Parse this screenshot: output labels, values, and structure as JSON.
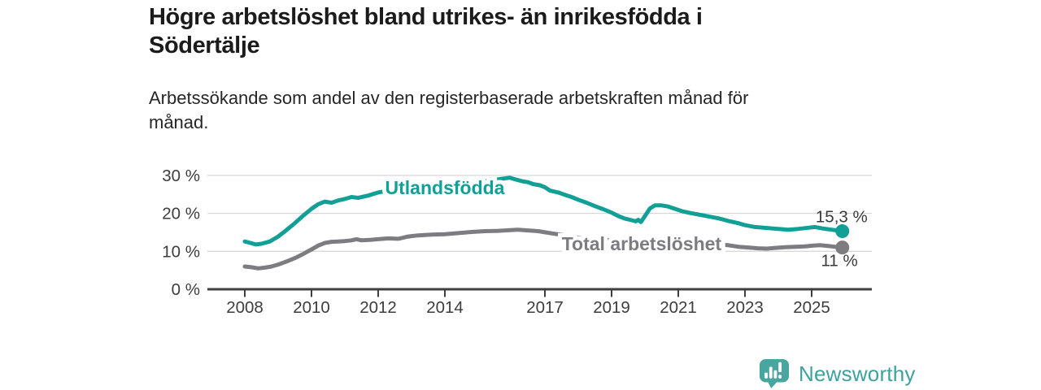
{
  "header": {
    "title": "Högre arbetslöshet bland utrikes- än inrikesfödda i Södertälje",
    "subtitle": "Arbetssökande som andel av den registerbaserade arbetskraften månad för månad."
  },
  "footer": {
    "brand": "Newsworthy",
    "brand_color": "#3FA19B",
    "logo_icon": "bar-chart-speech-bubble-icon"
  },
  "chart_data": {
    "type": "line",
    "unit": "%",
    "grid": "horizontal",
    "legend_position": "inline-labels",
    "ylim": [
      0,
      32
    ],
    "xlim": [
      2006.9,
      2026.8
    ],
    "y_ticks": {
      "values": [
        0,
        10,
        20,
        30
      ],
      "labels": [
        "0 %",
        "10 %",
        "20 %",
        "30 %"
      ]
    },
    "x_ticks": {
      "values": [
        2008,
        2010,
        2012,
        2014,
        2017,
        2019,
        2021,
        2023,
        2025
      ],
      "labels": [
        "2008",
        "2010",
        "2012",
        "2014",
        "2017",
        "2019",
        "2021",
        "2023",
        "2025"
      ]
    },
    "colors": {
      "grid": "#D9D9D9",
      "axis": "#404040",
      "tick_text": "#3D3D3D"
    },
    "series": [
      {
        "name": "Utlandsfödda",
        "color": "#12A096",
        "end_label": "15,3 %",
        "end_value": 15.3,
        "end_label_side": "above",
        "label_anchor": {
          "x": 2014.0,
          "y": 26.8
        },
        "points": [
          [
            2008,
            12.6
          ],
          [
            2008.17,
            12.2
          ],
          [
            2008.33,
            11.8
          ],
          [
            2008.5,
            12.0
          ],
          [
            2008.75,
            12.6
          ],
          [
            2009,
            13.9
          ],
          [
            2009.25,
            15.6
          ],
          [
            2009.5,
            17.4
          ],
          [
            2009.75,
            19.4
          ],
          [
            2010,
            21.2
          ],
          [
            2010.2,
            22.4
          ],
          [
            2010.4,
            23.1
          ],
          [
            2010.6,
            22.8
          ],
          [
            2010.8,
            23.4
          ],
          [
            2011,
            23.8
          ],
          [
            2011.2,
            24.3
          ],
          [
            2011.4,
            24.1
          ],
          [
            2011.7,
            24.7
          ],
          [
            2012,
            25.5
          ],
          [
            2012.3,
            26.0
          ],
          [
            2012.6,
            26.3
          ],
          [
            2013,
            26.6
          ],
          [
            2013.5,
            27.0
          ],
          [
            2014,
            27.4
          ],
          [
            2014.5,
            27.8
          ],
          [
            2015,
            28.3
          ],
          [
            2015.4,
            28.7
          ],
          [
            2015.7,
            29.1
          ],
          [
            2015.95,
            29.4
          ],
          [
            2016.1,
            29.0
          ],
          [
            2016.3,
            28.5
          ],
          [
            2016.5,
            28.2
          ],
          [
            2016.65,
            27.7
          ],
          [
            2016.85,
            27.4
          ],
          [
            2017,
            26.9
          ],
          [
            2017.15,
            26.0
          ],
          [
            2017.4,
            25.5
          ],
          [
            2017.6,
            24.9
          ],
          [
            2017.8,
            24.3
          ],
          [
            2018,
            23.6
          ],
          [
            2018.25,
            22.8
          ],
          [
            2018.5,
            21.9
          ],
          [
            2018.75,
            21.1
          ],
          [
            2019,
            20.2
          ],
          [
            2019.2,
            19.3
          ],
          [
            2019.4,
            18.6
          ],
          [
            2019.6,
            18.2
          ],
          [
            2019.72,
            17.9
          ],
          [
            2019.8,
            18.3
          ],
          [
            2019.88,
            17.7
          ],
          [
            2020,
            19.3
          ],
          [
            2020.15,
            21.3
          ],
          [
            2020.3,
            22.1
          ],
          [
            2020.5,
            22.1
          ],
          [
            2020.7,
            21.8
          ],
          [
            2020.9,
            21.2
          ],
          [
            2021.1,
            20.6
          ],
          [
            2021.35,
            20.1
          ],
          [
            2021.6,
            19.7
          ],
          [
            2021.9,
            19.2
          ],
          [
            2022.2,
            18.7
          ],
          [
            2022.5,
            18.0
          ],
          [
            2022.8,
            17.4
          ],
          [
            2023,
            16.9
          ],
          [
            2023.3,
            16.4
          ],
          [
            2023.7,
            16.1
          ],
          [
            2024,
            15.9
          ],
          [
            2024.3,
            15.7
          ],
          [
            2024.6,
            15.9
          ],
          [
            2024.9,
            16.2
          ],
          [
            2025.1,
            16.4
          ],
          [
            2025.35,
            16.0
          ],
          [
            2025.6,
            15.7
          ],
          [
            2025.75,
            15.5
          ],
          [
            2025.92,
            15.3
          ]
        ]
      },
      {
        "name": "Total arbetslöshet",
        "color": "#7C7C81",
        "end_label": "11 %",
        "end_value": 11,
        "end_label_side": "below",
        "label_anchor": {
          "x": 2019.9,
          "y": 12.0
        },
        "points": [
          [
            2008,
            6.0
          ],
          [
            2008.2,
            5.8
          ],
          [
            2008.4,
            5.5
          ],
          [
            2008.6,
            5.7
          ],
          [
            2008.8,
            6.0
          ],
          [
            2009,
            6.5
          ],
          [
            2009.25,
            7.3
          ],
          [
            2009.5,
            8.2
          ],
          [
            2009.75,
            9.3
          ],
          [
            2010,
            10.5
          ],
          [
            2010.2,
            11.5
          ],
          [
            2010.4,
            12.2
          ],
          [
            2010.6,
            12.5
          ],
          [
            2010.8,
            12.6
          ],
          [
            2011,
            12.7
          ],
          [
            2011.2,
            12.9
          ],
          [
            2011.35,
            13.2
          ],
          [
            2011.5,
            12.9
          ],
          [
            2011.75,
            13.0
          ],
          [
            2012,
            13.2
          ],
          [
            2012.3,
            13.4
          ],
          [
            2012.6,
            13.3
          ],
          [
            2012.9,
            13.9
          ],
          [
            2013.2,
            14.2
          ],
          [
            2013.6,
            14.4
          ],
          [
            2014,
            14.5
          ],
          [
            2014.4,
            14.8
          ],
          [
            2014.8,
            15.1
          ],
          [
            2015.2,
            15.3
          ],
          [
            2015.6,
            15.4
          ],
          [
            2016,
            15.6
          ],
          [
            2016.2,
            15.7
          ],
          [
            2016.5,
            15.5
          ],
          [
            2016.8,
            15.3
          ],
          [
            2017,
            15.0
          ],
          [
            2017.3,
            14.6
          ],
          [
            2017.6,
            14.2
          ],
          [
            2018,
            13.6
          ],
          [
            2018.5,
            13.2
          ],
          [
            2019,
            12.9
          ],
          [
            2019.5,
            12.6
          ],
          [
            2020,
            12.8
          ],
          [
            2020.3,
            13.1
          ],
          [
            2020.8,
            12.9
          ],
          [
            2021.3,
            12.5
          ],
          [
            2021.8,
            12.1
          ],
          [
            2022.2,
            11.8
          ],
          [
            2022.5,
            11.6
          ],
          [
            2022.8,
            11.2
          ],
          [
            2023.1,
            11.0
          ],
          [
            2023.4,
            10.8
          ],
          [
            2023.65,
            10.7
          ],
          [
            2023.9,
            10.9
          ],
          [
            2024.2,
            11.1
          ],
          [
            2024.5,
            11.2
          ],
          [
            2024.8,
            11.3
          ],
          [
            2025.05,
            11.5
          ],
          [
            2025.25,
            11.6
          ],
          [
            2025.5,
            11.4
          ],
          [
            2025.7,
            11.2
          ],
          [
            2025.92,
            11.0
          ]
        ]
      }
    ]
  }
}
